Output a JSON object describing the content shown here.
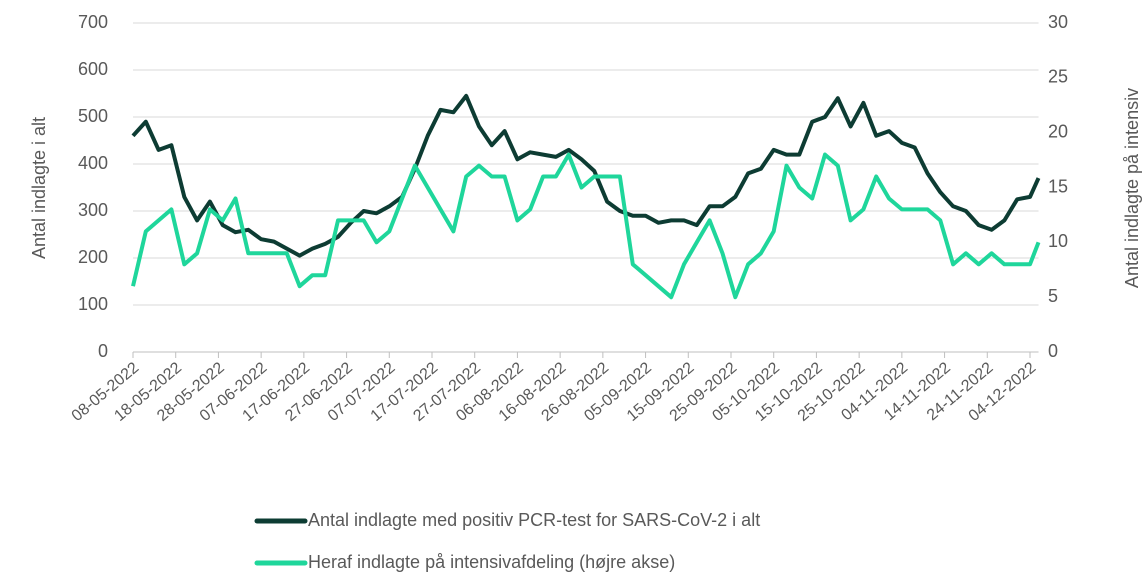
{
  "chart_data": {
    "type": "line",
    "x": [
      "08-05-2022",
      "11-05-2022",
      "14-05-2022",
      "17-05-2022",
      "20-05-2022",
      "23-05-2022",
      "26-05-2022",
      "29-05-2022",
      "01-06-2022",
      "04-06-2022",
      "07-06-2022",
      "10-06-2022",
      "13-06-2022",
      "16-06-2022",
      "19-06-2022",
      "22-06-2022",
      "25-06-2022",
      "28-06-2022",
      "01-07-2022",
      "04-07-2022",
      "07-07-2022",
      "10-07-2022",
      "13-07-2022",
      "16-07-2022",
      "19-07-2022",
      "22-07-2022",
      "25-07-2022",
      "28-07-2022",
      "31-07-2022",
      "03-08-2022",
      "06-08-2022",
      "09-08-2022",
      "12-08-2022",
      "15-08-2022",
      "18-08-2022",
      "21-08-2022",
      "24-08-2022",
      "27-08-2022",
      "30-08-2022",
      "02-09-2022",
      "05-09-2022",
      "08-09-2022",
      "11-09-2022",
      "14-09-2022",
      "17-09-2022",
      "20-09-2022",
      "23-09-2022",
      "26-09-2022",
      "29-09-2022",
      "02-10-2022",
      "05-10-2022",
      "08-10-2022",
      "11-10-2022",
      "14-10-2022",
      "17-10-2022",
      "20-10-2022",
      "23-10-2022",
      "26-10-2022",
      "29-10-2022",
      "01-11-2022",
      "04-11-2022",
      "07-11-2022",
      "10-11-2022",
      "13-11-2022",
      "16-11-2022",
      "19-11-2022",
      "22-11-2022",
      "25-11-2022",
      "28-11-2022",
      "01-12-2022",
      "04-12-2022",
      "06-12-2022"
    ],
    "series": [
      {
        "name": "Antal indlagte med positiv PCR-test for SARS-CoV-2 i alt",
        "color": "#0d3c33",
        "values": [
          460,
          490,
          430,
          440,
          330,
          280,
          320,
          270,
          255,
          260,
          240,
          235,
          220,
          205,
          220,
          230,
          245,
          275,
          300,
          295,
          310,
          330,
          390,
          460,
          515,
          510,
          545,
          480,
          440,
          470,
          410,
          425,
          420,
          415,
          430,
          410,
          385,
          320,
          300,
          290,
          290,
          275,
          280,
          280,
          270,
          310,
          310,
          330,
          380,
          390,
          430,
          420,
          420,
          490,
          500,
          540,
          480,
          530,
          460,
          470,
          445,
          435,
          380,
          340,
          310,
          300,
          270,
          260,
          280,
          325,
          330,
          370
        ]
      },
      {
        "name": "Heraf indlagte på intensivafdeling (højre akse)",
        "color": "#1fd69b",
        "axis": "y2",
        "values": [
          6,
          11,
          12,
          13,
          8,
          9,
          13,
          12,
          14,
          9,
          9,
          9,
          9,
          6,
          7,
          7,
          12,
          12,
          12,
          10,
          11,
          14,
          17,
          15,
          13,
          11,
          16,
          17,
          16,
          16,
          12,
          13,
          16,
          16,
          18,
          15,
          16,
          16,
          16,
          8,
          7,
          6,
          5,
          8,
          10,
          12,
          9,
          5,
          8,
          9,
          11,
          17,
          15,
          14,
          18,
          17,
          12,
          13,
          16,
          14,
          13,
          13,
          13,
          12,
          8,
          9,
          8,
          9,
          8,
          8,
          8,
          10
        ]
      }
    ],
    "xlim": [
      "08-05-2022",
      "06-12-2022"
    ],
    "xticks": [
      "08-05-2022",
      "18-05-2022",
      "28-05-2022",
      "07-06-2022",
      "17-06-2022",
      "27-06-2022",
      "07-07-2022",
      "17-07-2022",
      "27-07-2022",
      "06-08-2022",
      "16-08-2022",
      "26-08-2022",
      "05-09-2022",
      "15-09-2022",
      "25-09-2022",
      "05-10-2022",
      "15-10-2022",
      "25-10-2022",
      "04-11-2022",
      "14-11-2022",
      "24-11-2022",
      "04-12-2022"
    ],
    "ylim": [
      0,
      700
    ],
    "yticks": [
      0,
      100,
      200,
      300,
      400,
      500,
      600,
      700
    ],
    "y2lim": [
      0,
      30
    ],
    "y2ticks": [
      0,
      5,
      10,
      15,
      20,
      25,
      30
    ],
    "ylabel": "Antal indlagte i alt",
    "y2label": "Antal indlagte på intensiv",
    "grid": true
  }
}
